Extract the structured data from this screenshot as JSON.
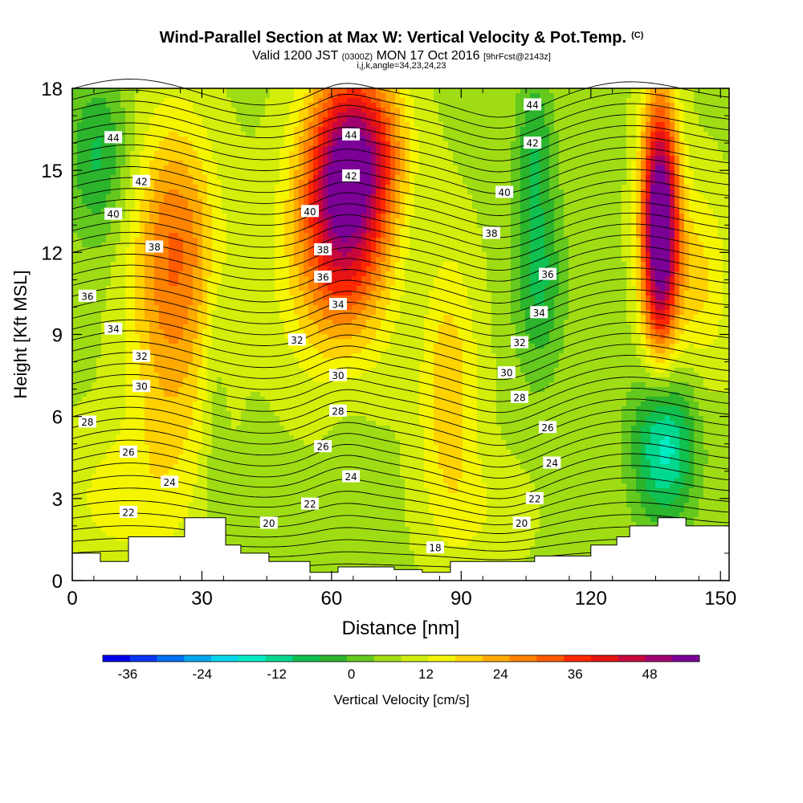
{
  "title": "Wind-Parallel Section at Max W: Vertical Velocity & Pot.Temp.",
  "title_mark": "(C)",
  "subtitle_a": "Valid 1200 JST",
  "subtitle_b": "(0300Z)",
  "subtitle_c": "MON 17 Oct 2016",
  "subtitle_d": "[9hrFcst@2143z]",
  "subtitle2": "i,j,k,angle=34,23,24,23",
  "chart_data": {
    "type": "heatmap",
    "xlabel": "Distance [nm]",
    "ylabel": "Height [Kft MSL]",
    "xlim": [
      0,
      152
    ],
    "ylim": [
      0,
      18
    ],
    "x_ticks": [
      0,
      30,
      60,
      90,
      120,
      150
    ],
    "y_ticks": [
      0,
      3,
      6,
      9,
      12,
      15,
      18
    ],
    "colorbar": {
      "label": "Vertical Velocity [cm/s]",
      "min": -40,
      "max": 56,
      "step": 4,
      "tick_values": [
        -36,
        -24,
        -12,
        0,
        12,
        24,
        36,
        48
      ],
      "colors": [
        "#0000f0",
        "#0a37f5",
        "#0070f0",
        "#00a8f0",
        "#00d8ec",
        "#00ecc4",
        "#00d890",
        "#10c050",
        "#2cb42c",
        "#64c81e",
        "#a0dc14",
        "#d2ee0a",
        "#f5f500",
        "#ffd200",
        "#ffaa00",
        "#ff8200",
        "#ff5a00",
        "#ff2800",
        "#e61414",
        "#c8083c",
        "#a0006e",
        "#7a0096"
      ]
    },
    "vertical_velocity_features": [
      {
        "x": 6,
        "y": 15.5,
        "sx": 5,
        "sy": 2.2,
        "w": -12
      },
      {
        "x": 23,
        "y": 10,
        "sx": 7,
        "sy": 4.5,
        "w": 16
      },
      {
        "x": 25,
        "y": 13,
        "sx": 7,
        "sy": 2.5,
        "w": 8
      },
      {
        "x": 33,
        "y": 6.5,
        "sx": 2,
        "sy": 4.5,
        "w": -4
      },
      {
        "x": 63,
        "y": 14,
        "sx": 7,
        "sy": 3,
        "w": 36
      },
      {
        "x": 68,
        "y": 16,
        "sx": 7,
        "sy": 2,
        "w": 18
      },
      {
        "x": 60,
        "y": 11,
        "sx": 10,
        "sy": 3,
        "w": 8
      },
      {
        "x": 64,
        "y": 6,
        "sx": 4,
        "sy": 2.5,
        "w": -2
      },
      {
        "x": 80,
        "y": 12,
        "sx": 3,
        "sy": 4,
        "w": -2
      },
      {
        "x": 87,
        "y": 7,
        "sx": 5,
        "sy": 3.5,
        "w": 12
      },
      {
        "x": 108,
        "y": 11,
        "sx": 4,
        "sy": 2.5,
        "w": -12
      },
      {
        "x": 107,
        "y": 16,
        "sx": 3,
        "sy": 2,
        "w": -10
      },
      {
        "x": 136,
        "y": 13,
        "sx": 3,
        "sy": 3.2,
        "w": 52
      },
      {
        "x": 137,
        "y": 5,
        "sx": 5,
        "sy": 2,
        "w": -22
      },
      {
        "x": 145,
        "y": 11,
        "sx": 5,
        "sy": 2.5,
        "w": 10
      },
      {
        "x": 10,
        "y": 3,
        "sx": 10,
        "sy": 2,
        "w": 6
      },
      {
        "x": 95,
        "y": 2.5,
        "sx": 8,
        "sy": 1.5,
        "w": 4
      }
    ],
    "isentrope_labels": [
      {
        "text": "44",
        "x": 9.5,
        "y": 16.2
      },
      {
        "text": "42",
        "x": 16,
        "y": 14.6
      },
      {
        "text": "40",
        "x": 9.5,
        "y": 13.4
      },
      {
        "text": "38",
        "x": 19,
        "y": 12.2
      },
      {
        "text": "36",
        "x": 3.5,
        "y": 10.4
      },
      {
        "text": "34",
        "x": 9.5,
        "y": 9.2
      },
      {
        "text": "32",
        "x": 16,
        "y": 8.2
      },
      {
        "text": "30",
        "x": 16,
        "y": 7.1
      },
      {
        "text": "28",
        "x": 3.5,
        "y": 5.8
      },
      {
        "text": "26",
        "x": 13,
        "y": 4.7
      },
      {
        "text": "24",
        "x": 22.5,
        "y": 3.6
      },
      {
        "text": "22",
        "x": 13,
        "y": 2.5
      },
      {
        "text": "44",
        "x": 64.5,
        "y": 16.3
      },
      {
        "text": "42",
        "x": 64.5,
        "y": 14.8
      },
      {
        "text": "40",
        "x": 55,
        "y": 13.5
      },
      {
        "text": "38",
        "x": 58,
        "y": 12.1
      },
      {
        "text": "36",
        "x": 58,
        "y": 11.1
      },
      {
        "text": "34",
        "x": 61.5,
        "y": 10.1
      },
      {
        "text": "32",
        "x": 52,
        "y": 8.8
      },
      {
        "text": "30",
        "x": 61.5,
        "y": 7.5
      },
      {
        "text": "28",
        "x": 61.5,
        "y": 6.2
      },
      {
        "text": "26",
        "x": 58,
        "y": 4.9
      },
      {
        "text": "24",
        "x": 64.5,
        "y": 3.8
      },
      {
        "text": "22",
        "x": 55,
        "y": 2.8
      },
      {
        "text": "20",
        "x": 45.5,
        "y": 2.1
      },
      {
        "text": "18",
        "x": 84,
        "y": 1.2
      },
      {
        "text": "44",
        "x": 106.5,
        "y": 17.4
      },
      {
        "text": "42",
        "x": 106.5,
        "y": 16.0
      },
      {
        "text": "40",
        "x": 100,
        "y": 14.2
      },
      {
        "text": "38",
        "x": 97,
        "y": 12.7
      },
      {
        "text": "36",
        "x": 110,
        "y": 11.2
      },
      {
        "text": "34",
        "x": 108,
        "y": 9.8
      },
      {
        "text": "32",
        "x": 103.5,
        "y": 8.7
      },
      {
        "text": "30",
        "x": 100.5,
        "y": 7.6
      },
      {
        "text": "28",
        "x": 103.5,
        "y": 6.7
      },
      {
        "text": "26",
        "x": 110,
        "y": 5.6
      },
      {
        "text": "24",
        "x": 111,
        "y": 4.3
      },
      {
        "text": "22",
        "x": 107,
        "y": 3.0
      },
      {
        "text": "20",
        "x": 104,
        "y": 2.1
      }
    ],
    "terrain": [
      [
        0,
        1.0
      ],
      [
        6.5,
        1.0
      ],
      [
        6.5,
        0.7
      ],
      [
        13,
        0.7
      ],
      [
        13,
        1.6
      ],
      [
        26,
        1.6
      ],
      [
        26,
        2.3
      ],
      [
        35.5,
        2.3
      ],
      [
        35.5,
        1.3
      ],
      [
        39,
        1.3
      ],
      [
        39,
        1.0
      ],
      [
        45.5,
        1.0
      ],
      [
        45.5,
        0.7
      ],
      [
        55,
        0.7
      ],
      [
        55,
        0.3
      ],
      [
        61.5,
        0.3
      ],
      [
        61.5,
        0.5
      ],
      [
        74.5,
        0.5
      ],
      [
        74.5,
        0.4
      ],
      [
        81,
        0.4
      ],
      [
        81,
        0.3
      ],
      [
        87.5,
        0.3
      ],
      [
        87.5,
        0.7
      ],
      [
        94,
        0.7
      ],
      [
        94,
        0.7
      ],
      [
        107,
        0.7
      ],
      [
        107,
        0.9
      ],
      [
        120,
        0.9
      ],
      [
        120,
        1.3
      ],
      [
        126,
        1.3
      ],
      [
        126,
        1.6
      ],
      [
        129,
        1.6
      ],
      [
        129,
        2.0
      ],
      [
        135.5,
        2.0
      ],
      [
        135.5,
        2.3
      ],
      [
        142,
        2.3
      ],
      [
        142,
        2.0
      ],
      [
        152,
        2.0
      ]
    ]
  }
}
